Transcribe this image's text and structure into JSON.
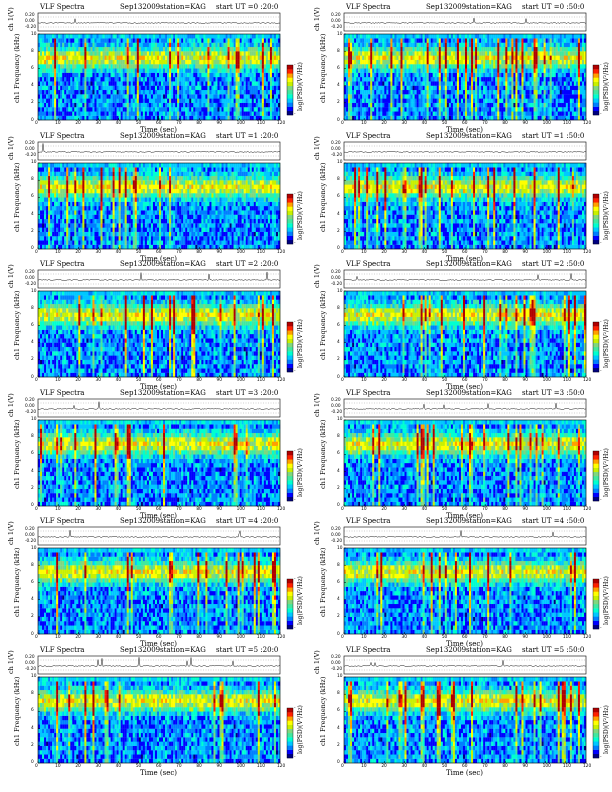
{
  "chart_data": [
    {
      "type": "heatmap",
      "title": "VLF Spectra",
      "date": "Sep132009",
      "station": "station=KAG",
      "start_ut": "start UT =0 :20:0",
      "ch_label": "ch 1(V)",
      "ylabel": "ch1 Frequency (kHz)",
      "xlabel": "Time (sec)",
      "colorbar_label": "log(PSD)(V²/Hz)",
      "x_ticks": [
        "0",
        "10",
        "20",
        "30",
        "40",
        "50",
        "60",
        "70",
        "80",
        "90",
        "100",
        "110",
        "120"
      ],
      "y_ticks": [
        "0",
        "2",
        "4",
        "6",
        "8",
        "10"
      ],
      "v_ticks": [
        "0.20",
        "0.00",
        "-0.20"
      ],
      "xlim": [
        0,
        120
      ],
      "ylim": [
        0,
        10
      ],
      "cb_ticks": [
        "-",
        "-"
      ]
    },
    {
      "type": "heatmap",
      "title": "VLF Spectra",
      "date": "Sep132009",
      "station": "station=KAG",
      "start_ut": "start UT =0 :50:0",
      "ch_label": "ch 1(V)",
      "ylabel": "ch1 Frequency (kHz)",
      "xlabel": "Time (sec)",
      "colorbar_label": "log(PSD)(V²/Hz)",
      "x_ticks": [
        "0",
        "10",
        "20",
        "30",
        "40",
        "50",
        "60",
        "70",
        "80",
        "90",
        "100",
        "110",
        "120"
      ],
      "y_ticks": [
        "0",
        "2",
        "4",
        "6",
        "8",
        "10"
      ],
      "v_ticks": [
        "0.20",
        "0.00",
        "-0.20"
      ],
      "xlim": [
        0,
        120
      ],
      "ylim": [
        0,
        10
      ],
      "cb_ticks": [
        "-",
        "-"
      ]
    },
    {
      "type": "heatmap",
      "title": "VLF Spectra",
      "date": "Sep132009",
      "station": "station=KAG",
      "start_ut": "start UT =1 :20:0",
      "ch_label": "ch 1(V)",
      "ylabel": "ch1 Frequency (kHz)",
      "xlabel": "Time (sec)",
      "colorbar_label": "log(PSD)(V²/Hz)",
      "x_ticks": [
        "0",
        "10",
        "20",
        "30",
        "40",
        "50",
        "60",
        "70",
        "80",
        "90",
        "100",
        "110",
        "120"
      ],
      "y_ticks": [
        "0",
        "2",
        "4",
        "6",
        "8",
        "10"
      ],
      "v_ticks": [
        "0.20",
        "0.00",
        "-0.20"
      ],
      "xlim": [
        0,
        120
      ],
      "ylim": [
        0,
        10
      ],
      "cb_ticks": [
        "-",
        "-"
      ]
    },
    {
      "type": "heatmap",
      "title": "VLF Spectra",
      "date": "Sep132009",
      "station": "station=KAG",
      "start_ut": "start UT =1 :50:0",
      "ch_label": "ch 1(V)",
      "ylabel": "ch1 Frequency (kHz)",
      "xlabel": "Time (sec)",
      "colorbar_label": "log(PSD)(V²/Hz)",
      "x_ticks": [
        "0",
        "10",
        "20",
        "30",
        "40",
        "50",
        "60",
        "70",
        "80",
        "90",
        "100",
        "110",
        "120"
      ],
      "y_ticks": [
        "0",
        "2",
        "4",
        "6",
        "8",
        "10"
      ],
      "v_ticks": [
        "0.20",
        "0.00",
        "-0.20"
      ],
      "xlim": [
        0,
        120
      ],
      "ylim": [
        0,
        10
      ],
      "cb_ticks": [
        "-",
        "-"
      ]
    },
    {
      "type": "heatmap",
      "title": "VLF Spectra",
      "date": "Sep132009",
      "station": "station=KAG",
      "start_ut": "start UT =2 :20:0",
      "ch_label": "ch 1(V)",
      "ylabel": "ch1 Frequency (kHz)",
      "xlabel": "Time (sec)",
      "colorbar_label": "log(PSD)(V²/Hz)",
      "x_ticks": [
        "0",
        "10",
        "20",
        "30",
        "40",
        "50",
        "60",
        "70",
        "80",
        "90",
        "100",
        "110",
        "120"
      ],
      "y_ticks": [
        "0",
        "2",
        "4",
        "6",
        "8",
        "10"
      ],
      "v_ticks": [
        "0.20",
        "0.00",
        "-0.20"
      ],
      "xlim": [
        0,
        120
      ],
      "ylim": [
        0,
        10
      ],
      "cb_ticks": [
        "-",
        "-"
      ]
    },
    {
      "type": "heatmap",
      "title": "VLF Spectra",
      "date": "Sep132009",
      "station": "station=KAG",
      "start_ut": "start UT =2 :50:0",
      "ch_label": "ch 1(V)",
      "ylabel": "ch1 Frequency (kHz)",
      "xlabel": "Time (sec)",
      "colorbar_label": "log(PSD)(V²/Hz)",
      "x_ticks": [
        "0",
        "10",
        "20",
        "30",
        "40",
        "50",
        "60",
        "70",
        "80",
        "90",
        "100",
        "110",
        "120"
      ],
      "y_ticks": [
        "0",
        "2",
        "4",
        "6",
        "8",
        "10"
      ],
      "v_ticks": [
        "0.20",
        "0.00",
        "-0.20"
      ],
      "xlim": [
        0,
        120
      ],
      "ylim": [
        0,
        10
      ],
      "cb_ticks": [
        "-",
        "-"
      ]
    },
    {
      "type": "heatmap",
      "title": "VLF Spectra",
      "date": "Sep132009",
      "station": "station=KAG",
      "start_ut": "start UT =3 :20:0",
      "ch_label": "ch 1(V)",
      "ylabel": "ch1 Frequency (kHz)",
      "xlabel": "Time (sec)",
      "colorbar_label": "log(PSD)(V²/Hz)",
      "x_ticks": [
        "0",
        "10",
        "20",
        "30",
        "40",
        "50",
        "60",
        "70",
        "80",
        "90",
        "100",
        "110",
        "120"
      ],
      "y_ticks": [
        "0",
        "2",
        "4",
        "6",
        "8",
        "10"
      ],
      "v_ticks": [
        "0.20",
        "0.00",
        "-0.20"
      ],
      "xlim": [
        0,
        120
      ],
      "ylim": [
        0,
        10
      ],
      "cb_ticks": [
        "-",
        "-"
      ]
    },
    {
      "type": "heatmap",
      "title": "VLF Spectra",
      "date": "Sep132009",
      "station": "station=KAG",
      "start_ut": "start UT =3 :50:0",
      "ch_label": "ch 1(V)",
      "ylabel": "ch1 Frequency (kHz)",
      "xlabel": "Time (sec)",
      "colorbar_label": "log(PSD)(V²/Hz)",
      "x_ticks": [
        "0",
        "10",
        "20",
        "30",
        "40",
        "50",
        "60",
        "70",
        "80",
        "90",
        "100",
        "110",
        "120"
      ],
      "y_ticks": [
        "0",
        "2",
        "4",
        "6",
        "8",
        "10"
      ],
      "v_ticks": [
        "0.20",
        "0.00",
        "-0.20"
      ],
      "xlim": [
        0,
        120
      ],
      "ylim": [
        0,
        10
      ],
      "cb_ticks": [
        "-",
        "-"
      ]
    },
    {
      "type": "heatmap",
      "title": "VLF Spectra",
      "date": "Sep132009",
      "station": "station=KAG",
      "start_ut": "start UT =4 :20:0",
      "ch_label": "ch 1(V)",
      "ylabel": "ch1 Frequency (kHz)",
      "xlabel": "Time (sec)",
      "colorbar_label": "log(PSD)(V²/Hz)",
      "x_ticks": [
        "0",
        "10",
        "20",
        "30",
        "40",
        "50",
        "60",
        "70",
        "80",
        "90",
        "100",
        "110",
        "120"
      ],
      "y_ticks": [
        "0",
        "2",
        "4",
        "6",
        "8",
        "10"
      ],
      "v_ticks": [
        "0.20",
        "0.00",
        "-0.20"
      ],
      "xlim": [
        0,
        120
      ],
      "ylim": [
        0,
        10
      ],
      "cb_ticks": [
        "-",
        "-"
      ]
    },
    {
      "type": "heatmap",
      "title": "VLF Spectra",
      "date": "Sep132009",
      "station": "station=KAG",
      "start_ut": "start UT =4 :50:0",
      "ch_label": "ch 1(V)",
      "ylabel": "ch1 Frequency (kHz)",
      "xlabel": "Time (sec)",
      "colorbar_label": "log(PSD)(V²/Hz)",
      "x_ticks": [
        "0",
        "10",
        "20",
        "30",
        "40",
        "50",
        "60",
        "70",
        "80",
        "90",
        "100",
        "110",
        "120"
      ],
      "y_ticks": [
        "0",
        "2",
        "4",
        "6",
        "8",
        "10"
      ],
      "v_ticks": [
        "0.20",
        "0.00",
        "-0.20"
      ],
      "xlim": [
        0,
        120
      ],
      "ylim": [
        0,
        10
      ],
      "cb_ticks": [
        "-",
        "-"
      ]
    },
    {
      "type": "heatmap",
      "title": "VLF Spectra",
      "date": "Sep132009",
      "station": "station=KAG",
      "start_ut": "start UT =5 :20:0",
      "ch_label": "ch 1(V)",
      "ylabel": "ch1 Frequency (kHz)",
      "xlabel": "Time (sec)",
      "colorbar_label": "log(PSD)(V²/Hz)",
      "x_ticks": [
        "0",
        "10",
        "20",
        "30",
        "40",
        "50",
        "60",
        "70",
        "80",
        "90",
        "100",
        "110",
        "120"
      ],
      "y_ticks": [
        "0",
        "2",
        "4",
        "6",
        "8",
        "10"
      ],
      "v_ticks": [
        "0.20",
        "0.00",
        "-0.20"
      ],
      "xlim": [
        0,
        120
      ],
      "ylim": [
        0,
        10
      ],
      "cb_ticks": [
        "-",
        "-"
      ]
    },
    {
      "type": "heatmap",
      "title": "VLF Spectra",
      "date": "Sep132009",
      "station": "station=KAG",
      "start_ut": "start UT =5 :50:0",
      "ch_label": "ch 1(V)",
      "ylabel": "ch1 Frequency (kHz)",
      "xlabel": "Time (sec)",
      "colorbar_label": "log(PSD)(V²/Hz)",
      "x_ticks": [
        "0",
        "10",
        "20",
        "30",
        "40",
        "50",
        "60",
        "70",
        "80",
        "90",
        "100",
        "110",
        "120"
      ],
      "y_ticks": [
        "0",
        "2",
        "4",
        "6",
        "8",
        "10"
      ],
      "v_ticks": [
        "0.20",
        "0.00",
        "-0.20"
      ],
      "xlim": [
        0,
        120
      ],
      "ylim": [
        0,
        10
      ],
      "cb_ticks": [
        "-",
        "-"
      ]
    }
  ],
  "colors": {
    "colormap": [
      "#00007f",
      "#0000ff",
      "#007fff",
      "#00c8ff",
      "#00ffd0",
      "#40e8a0",
      "#7fd77f",
      "#c8f000",
      "#ffff00",
      "#ff9f00",
      "#ff2000",
      "#b00000"
    ],
    "background": "#ffffff"
  }
}
